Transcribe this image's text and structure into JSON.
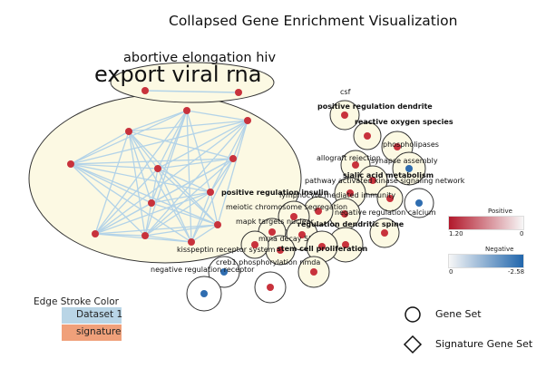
{
  "title": "Collapsed Gene Enrichment Visualization",
  "cluster_labels": {
    "line1": "abortive elongation hiv",
    "line2": "export viral rna"
  },
  "node_labels": [
    {
      "id": "csf",
      "text": "csf"
    },
    {
      "id": "posdend",
      "text": "positive regulation dendrite"
    },
    {
      "id": "ros",
      "text": "reactive oxygen species"
    },
    {
      "id": "phos",
      "text": "phospholipases"
    },
    {
      "id": "allograft",
      "text": "allograft rejection"
    },
    {
      "id": "synapse",
      "text": "synapse assembly"
    },
    {
      "id": "sialic",
      "text": "sialic acid metabolism"
    },
    {
      "id": "pakinase",
      "text": "pathway activated kinase signaling network"
    },
    {
      "id": "lymph",
      "text": "lymphocyte mediated immunity"
    },
    {
      "id": "posins",
      "text": "positive regulation insulin"
    },
    {
      "id": "negcal",
      "text": "negative regulation calcium"
    },
    {
      "id": "meiotic",
      "text": "meiotic chromosome segregation"
    },
    {
      "id": "mapk",
      "text": "mapk targets nuclear"
    },
    {
      "id": "regdend",
      "text": "regulation dendritic spine"
    },
    {
      "id": "mrna",
      "text": "mrna decay 5'"
    },
    {
      "id": "kiss",
      "text": "kisspeptin receptor system"
    },
    {
      "id": "stemcell",
      "text": "stem cell proliferation"
    },
    {
      "id": "creb",
      "text": "creb1 phosphorylation nmda"
    },
    {
      "id": "negrec",
      "text": "negative regulation receptor"
    }
  ],
  "legends": {
    "positive": {
      "title": "Positive",
      "min": "1.20",
      "max": "0",
      "color_strong": "#b2182b",
      "color_weak": "#f7f7f7"
    },
    "negative": {
      "title": "Negative",
      "min": "0",
      "max": "-2.58",
      "color_weak": "#f7f7f7",
      "color_strong": "#2166ac"
    },
    "edge_stroke": {
      "title": "Edge Stroke Color",
      "items": [
        {
          "label": "Dataset 1",
          "color": "#b9d5e6"
        },
        {
          "label": "signature",
          "color": "#f0a07a"
        }
      ]
    },
    "shapes": {
      "gene_set": "Gene Set",
      "signature_gene_set": "Signature Gene Set"
    }
  },
  "colors": {
    "node_red": "#c8323c",
    "node_blue": "#2f6db0",
    "cluster_fill": "#fcf9e3",
    "edge": "#b3d3e8",
    "outline": "#333333"
  }
}
